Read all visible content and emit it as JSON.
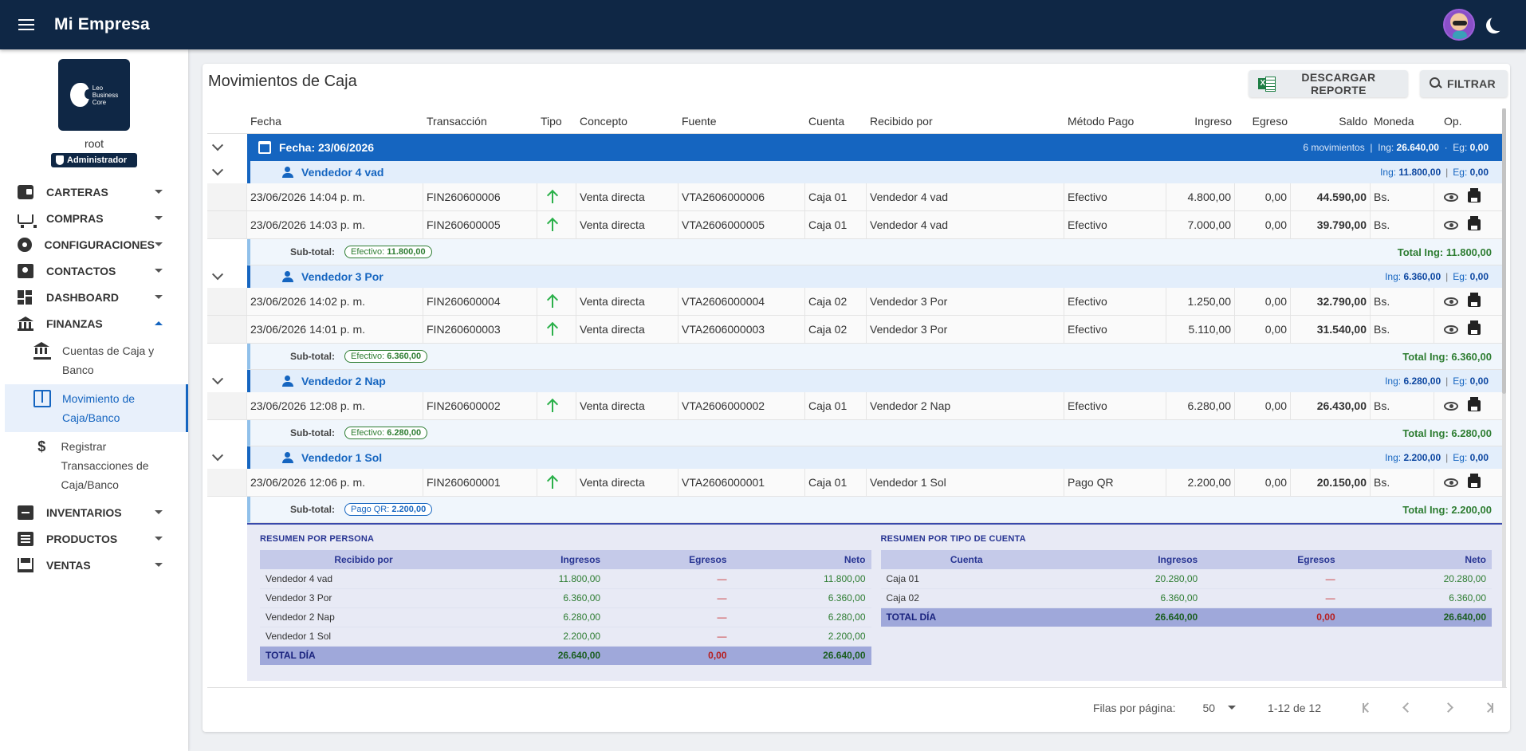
{
  "app": {
    "title": "Mi Empresa"
  },
  "sidebar": {
    "logo_text": [
      "Leo",
      "Business",
      "Core"
    ],
    "user_name": "root",
    "role": "Administrador",
    "items": [
      {
        "label": "CARTERAS"
      },
      {
        "label": "COMPRAS"
      },
      {
        "label": "CONFIGURACIONES"
      },
      {
        "label": "CONTACTOS"
      },
      {
        "label": "DASHBOARD"
      },
      {
        "label": "FINANZAS"
      },
      {
        "label": "INVENTARIOS"
      },
      {
        "label": "PRODUCTOS"
      },
      {
        "label": "VENTAS"
      }
    ],
    "finanzas_sub": [
      {
        "label": "Cuentas de Caja y Banco"
      },
      {
        "label": "Movimiento de Caja/Banco"
      },
      {
        "label": "Registrar Transacciones de Caja/Banco"
      }
    ]
  },
  "page": {
    "title": "Movimientos de Caja",
    "report_button": "DESCARGAR REPORTE",
    "filter_button": "FILTRAR"
  },
  "table": {
    "columns": [
      "Fecha",
      "Transacción",
      "Tipo",
      "Concepto",
      "Fuente",
      "Cuenta",
      "Recibido por",
      "Método Pago",
      "Ingreso",
      "Egreso",
      "Saldo",
      "Moneda",
      "Op."
    ],
    "date_group": {
      "label": "Fecha: 23/06/2026",
      "movements": "6 movimientos",
      "ing_label": "Ing:",
      "ing": "26.640,00",
      "eg_label": "Eg:",
      "eg": "0,00"
    },
    "groups": [
      {
        "seller": "Vendedor 4 vad",
        "ing": "11.800,00",
        "eg": "0,00",
        "rows": [
          {
            "fecha": "23/06/2026 14:04 p. m.",
            "trans": "FIN260600006",
            "concepto": "Venta directa",
            "fuente": "VTA2606000006",
            "cuenta": "Caja 01",
            "recibido": "Vendedor 4 vad",
            "metodo": "Efectivo",
            "ingreso": "4.800,00",
            "egreso": "0,00",
            "saldo": "44.590,00",
            "moneda": "Bs."
          },
          {
            "fecha": "23/06/2026 14:03 p. m.",
            "trans": "FIN260600005",
            "concepto": "Venta directa",
            "fuente": "VTA2606000005",
            "cuenta": "Caja 01",
            "recibido": "Vendedor 4 vad",
            "metodo": "Efectivo",
            "ingreso": "7.000,00",
            "egreso": "0,00",
            "saldo": "39.790,00",
            "moneda": "Bs."
          }
        ],
        "subtotal_label": "Sub-total:",
        "pill_method": "Efectivo:",
        "pill_value": "11.800,00",
        "total_ing": "Total Ing: 11.800,00"
      },
      {
        "seller": "Vendedor 3 Por",
        "ing": "6.360,00",
        "eg": "0,00",
        "rows": [
          {
            "fecha": "23/06/2026 14:02 p. m.",
            "trans": "FIN260600004",
            "concepto": "Venta directa",
            "fuente": "VTA2606000004",
            "cuenta": "Caja 02",
            "recibido": "Vendedor 3 Por",
            "metodo": "Efectivo",
            "ingreso": "1.250,00",
            "egreso": "0,00",
            "saldo": "32.790,00",
            "moneda": "Bs."
          },
          {
            "fecha": "23/06/2026 14:01 p. m.",
            "trans": "FIN260600003",
            "concepto": "Venta directa",
            "fuente": "VTA2606000003",
            "cuenta": "Caja 02",
            "recibido": "Vendedor 3 Por",
            "metodo": "Efectivo",
            "ingreso": "5.110,00",
            "egreso": "0,00",
            "saldo": "31.540,00",
            "moneda": "Bs."
          }
        ],
        "subtotal_label": "Sub-total:",
        "pill_method": "Efectivo:",
        "pill_value": "6.360,00",
        "total_ing": "Total Ing: 6.360,00"
      },
      {
        "seller": "Vendedor 2 Nap",
        "ing": "6.280,00",
        "eg": "0,00",
        "rows": [
          {
            "fecha": "23/06/2026 12:08 p. m.",
            "trans": "FIN260600002",
            "concepto": "Venta directa",
            "fuente": "VTA2606000002",
            "cuenta": "Caja 01",
            "recibido": "Vendedor 2 Nap",
            "metodo": "Efectivo",
            "ingreso": "6.280,00",
            "egreso": "0,00",
            "saldo": "26.430,00",
            "moneda": "Bs."
          }
        ],
        "subtotal_label": "Sub-total:",
        "pill_method": "Efectivo:",
        "pill_value": "6.280,00",
        "total_ing": "Total Ing: 6.280,00"
      },
      {
        "seller": "Vendedor 1 Sol",
        "ing": "2.200,00",
        "eg": "0,00",
        "rows": [
          {
            "fecha": "23/06/2026 12:06 p. m.",
            "trans": "FIN260600001",
            "concepto": "Venta directa",
            "fuente": "VTA2606000001",
            "cuenta": "Caja 01",
            "recibido": "Vendedor 1 Sol",
            "metodo": "Pago QR",
            "ingreso": "2.200,00",
            "egreso": "0,00",
            "saldo": "20.150,00",
            "moneda": "Bs."
          }
        ],
        "subtotal_label": "Sub-total:",
        "pill_method": "Pago QR:",
        "pill_value": "2.200,00",
        "total_ing": "Total Ing: 2.200,00"
      }
    ]
  },
  "summary_persona": {
    "title": "RESUMEN POR PERSONA",
    "headers": [
      "Recibido por",
      "Ingresos",
      "Egresos",
      "Neto"
    ],
    "rows": [
      [
        "Vendedor 4 vad",
        "11.800,00",
        "—",
        "11.800,00"
      ],
      [
        "Vendedor 3 Por",
        "6.360,00",
        "—",
        "6.360,00"
      ],
      [
        "Vendedor 2 Nap",
        "6.280,00",
        "—",
        "6.280,00"
      ],
      [
        "Vendedor 1 Sol",
        "2.200,00",
        "—",
        "2.200,00"
      ]
    ],
    "total": [
      "TOTAL DÍA",
      "26.640,00",
      "0,00",
      "26.640,00"
    ]
  },
  "summary_cuenta": {
    "title": "RESUMEN POR TIPO DE CUENTA",
    "headers": [
      "Cuenta",
      "Ingresos",
      "Egresos",
      "Neto"
    ],
    "rows": [
      [
        "Caja 01",
        "20.280,00",
        "—",
        "20.280,00"
      ],
      [
        "Caja 02",
        "6.360,00",
        "—",
        "6.360,00"
      ]
    ],
    "total": [
      "TOTAL DÍA",
      "26.640,00",
      "0,00",
      "26.640,00"
    ]
  },
  "pagination": {
    "rows_per_page_label": "Filas por página:",
    "rows_per_page": "50",
    "range": "1-12 de 12"
  },
  "colors": {
    "topbar": "#0f2745",
    "accent": "#1565c0",
    "income": "#2e7d32",
    "expense": "#c62828"
  }
}
